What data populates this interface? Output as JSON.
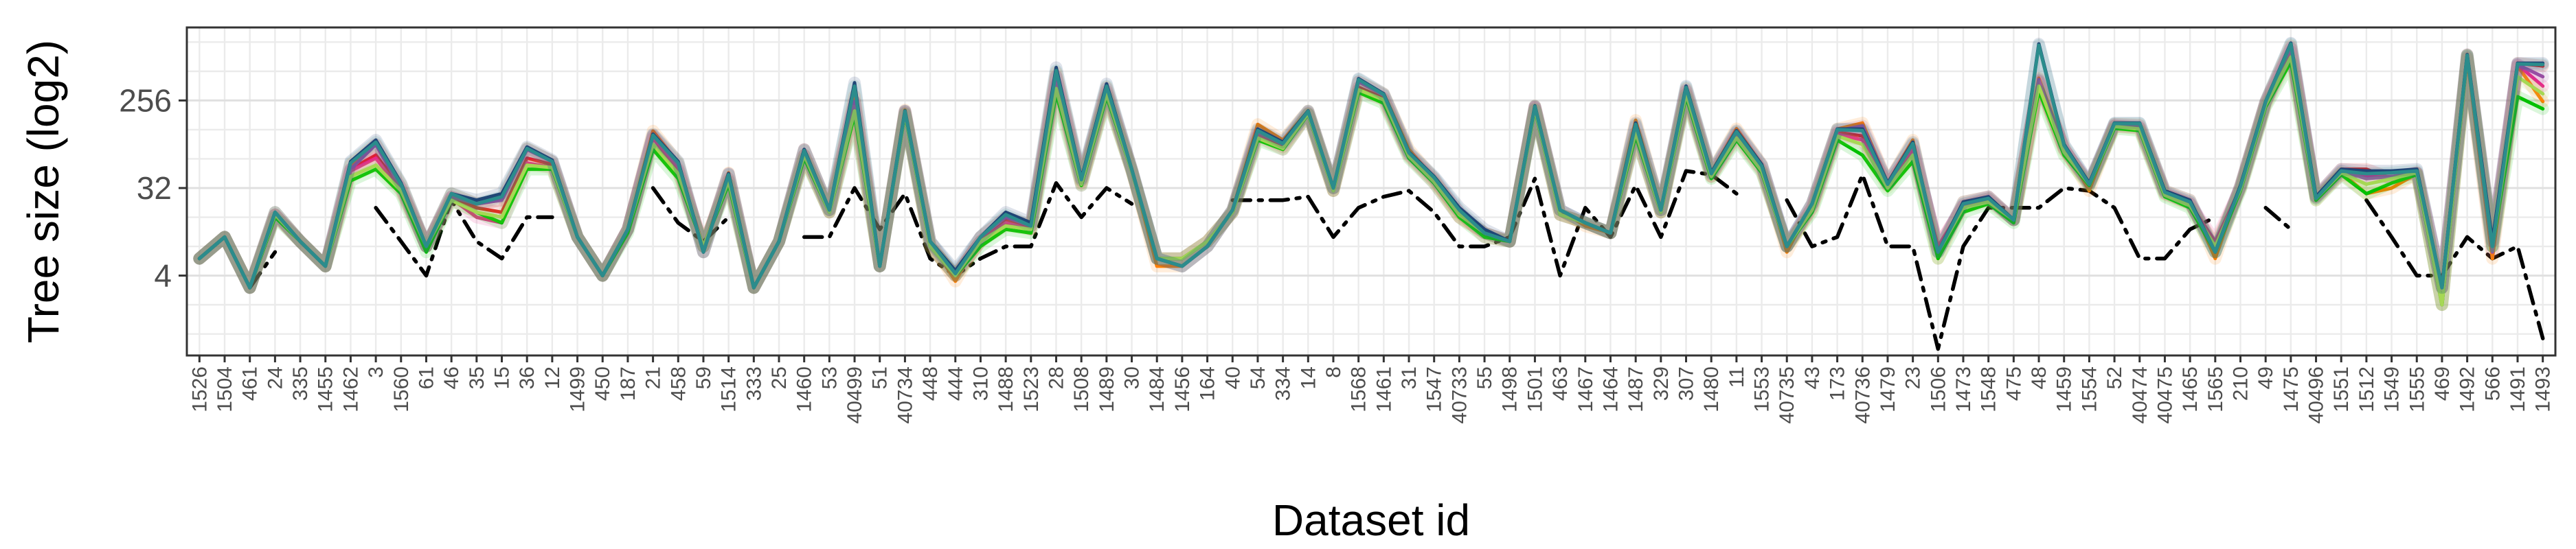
{
  "chart_data": {
    "type": "line",
    "xlabel": "Dataset id",
    "ylabel": "Tree size (log2)",
    "yscale": "log2",
    "ylim": [
      0.6,
      1450
    ],
    "yticks": [
      4,
      32,
      256
    ],
    "ytick_labels": [
      "4",
      "32",
      "256"
    ],
    "grid": true,
    "legend": "none",
    "categories": [
      "1526",
      "1504",
      "461",
      "24",
      "335",
      "1455",
      "1462",
      "3",
      "1560",
      "61",
      "46",
      "35",
      "15",
      "36",
      "12",
      "1499",
      "450",
      "187",
      "21",
      "458",
      "59",
      "1514",
      "333",
      "25",
      "1460",
      "53",
      "40499",
      "51",
      "40734",
      "448",
      "444",
      "310",
      "1488",
      "1523",
      "28",
      "1508",
      "1489",
      "30",
      "1484",
      "1456",
      "164",
      "40",
      "54",
      "334",
      "14",
      "8",
      "1568",
      "1461",
      "31",
      "1547",
      "40733",
      "55",
      "1498",
      "1501",
      "463",
      "1467",
      "1464",
      "1487",
      "329",
      "307",
      "1480",
      "11",
      "1553",
      "40735",
      "43",
      "173",
      "40736",
      "1479",
      "23",
      "1506",
      "1473",
      "1548",
      "475",
      "48",
      "1459",
      "1554",
      "52",
      "40474",
      "40475",
      "1465",
      "1565",
      "210",
      "49",
      "1475",
      "40496",
      "1551",
      "1512",
      "1549",
      "1555",
      "469",
      "1492",
      "566",
      "1491",
      "1493"
    ],
    "series": [
      {
        "color": "#000000",
        "dash": "dashdot",
        "values": [
          null,
          null,
          3,
          7,
          null,
          null,
          null,
          20,
          9,
          4,
          24,
          9,
          6,
          16,
          16,
          null,
          null,
          null,
          32,
          14,
          9,
          16,
          null,
          null,
          10,
          10,
          32,
          12,
          28,
          6,
          4,
          6,
          8,
          8,
          36,
          16,
          32,
          22,
          null,
          null,
          null,
          24,
          24,
          24,
          26,
          10,
          20,
          26,
          30,
          18,
          8,
          8,
          10,
          40,
          4,
          20,
          10,
          34,
          10,
          48,
          44,
          28,
          null,
          24,
          8,
          10,
          44,
          8,
          8,
          0.7,
          8,
          20,
          20,
          20,
          32,
          30,
          20,
          6,
          6,
          12,
          16,
          null,
          20,
          12,
          null,
          null,
          24,
          10,
          4,
          4,
          10,
          6,
          8,
          0.9
        ]
      },
      {
        "color": "#ff7f00",
        "values": [
          6,
          10,
          3,
          18,
          9,
          5,
          56,
          90,
          35,
          8,
          28,
          22,
          24,
          82,
          60,
          10,
          4,
          12,
          124,
          58,
          7,
          46,
          3,
          9,
          80,
          19,
          285,
          5,
          204,
          9,
          3.5,
          10,
          16,
          13,
          500,
          38,
          350,
          50,
          5,
          5,
          8,
          19,
          145,
          100,
          200,
          32,
          400,
          300,
          80,
          40,
          16,
          11,
          9,
          225,
          19,
          13,
          11,
          160,
          19,
          340,
          46,
          131,
          56,
          7,
          22,
          130,
          150,
          36,
          100,
          6,
          23,
          26,
          15,
          435,
          85,
          30,
          146,
          143,
          30,
          24,
          6,
          34,
          250,
          940,
          24,
          46,
          28,
          32,
          45,
          2,
          700,
          6,
          580,
          250
        ]
      },
      {
        "color": "#e41a1c",
        "values": [
          6,
          10,
          3,
          17,
          9,
          5,
          50,
          70,
          32,
          8,
          26,
          20,
          18,
          65,
          56,
          10,
          4,
          12,
          110,
          50,
          8,
          40,
          3,
          9,
          70,
          18,
          250,
          5,
          195,
          8,
          4,
          9,
          15,
          12,
          460,
          36,
          320,
          48,
          6,
          6,
          9,
          18,
          115,
          85,
          190,
          30,
          350,
          270,
          70,
          38,
          18,
          10,
          9,
          220,
          17,
          14,
          11,
          120,
          18,
          320,
          42,
          115,
          50,
          8,
          20,
          120,
          110,
          34,
          80,
          8,
          21,
          25,
          15,
          410,
          80,
          35,
          140,
          135,
          28,
          22,
          8,
          32,
          240,
          880,
          26,
          50,
          50,
          40,
          46,
          3,
          760,
          8,
          620,
          580
        ]
      },
      {
        "color": "#e7298a",
        "values": [
          6,
          10,
          3,
          17,
          9,
          5,
          48,
          65,
          30,
          8,
          25,
          16,
          14,
          58,
          52,
          10,
          4,
          12,
          105,
          48,
          8,
          38,
          3,
          9,
          70,
          18,
          200,
          5,
          190,
          8,
          4,
          9,
          14,
          12,
          380,
          34,
          300,
          48,
          6,
          6,
          9,
          18,
          110,
          80,
          185,
          30,
          330,
          260,
          68,
          36,
          16,
          11,
          9,
          215,
          17,
          14,
          11,
          115,
          18,
          300,
          42,
          110,
          48,
          8,
          20,
          115,
          100,
          34,
          78,
          8,
          21,
          24,
          15,
          400,
          80,
          36,
          140,
          132,
          28,
          22,
          9,
          32,
          230,
          820,
          26,
          44,
          42,
          42,
          46,
          3,
          740,
          9,
          600,
          360
        ]
      },
      {
        "color": "#984ea3",
        "values": [
          6,
          10,
          3,
          17,
          9,
          5,
          50,
          90,
          32,
          8,
          26,
          22,
          24,
          80,
          60,
          10,
          4,
          12,
          112,
          55,
          7,
          45,
          3,
          9,
          80,
          19,
          250,
          5,
          200,
          9,
          4,
          10,
          16,
          13,
          450,
          38,
          340,
          50,
          6,
          5,
          8,
          19,
          120,
          90,
          195,
          32,
          400,
          290,
          72,
          40,
          18,
          11,
          9,
          220,
          19,
          14,
          11,
          140,
          19,
          330,
          44,
          120,
          55,
          8,
          22,
          125,
          140,
          36,
          90,
          7,
          22,
          26,
          15,
          420,
          82,
          34,
          145,
          140,
          29,
          23,
          7,
          33,
          245,
          900,
          25,
          48,
          40,
          42,
          46,
          2,
          720,
          7,
          600,
          450
        ]
      },
      {
        "color": "#00c000",
        "values": [
          6,
          10,
          3,
          16,
          9,
          5,
          38,
          50,
          28,
          7,
          24,
          18,
          14,
          50,
          50,
          10,
          4,
          11,
          80,
          40,
          8,
          35,
          3,
          9,
          65,
          18,
          180,
          5,
          185,
          8,
          4,
          8,
          12,
          11,
          300,
          34,
          280,
          48,
          6,
          6,
          9,
          18,
          100,
          80,
          185,
          30,
          310,
          240,
          65,
          36,
          16,
          10,
          9,
          205,
          17,
          14,
          11,
          110,
          18,
          280,
          40,
          100,
          46,
          8,
          18,
          100,
          70,
          30,
          60,
          6,
          18,
          22,
          14,
          320,
          70,
          34,
          132,
          125,
          26,
          20,
          7,
          30,
          220,
          640,
          24,
          44,
          28,
          36,
          44,
          2,
          740,
          8,
          280,
          210
        ]
      },
      {
        "color": "#a6d854",
        "values": [
          6,
          10,
          3,
          17,
          9,
          5,
          42,
          55,
          30,
          8,
          24,
          18,
          16,
          55,
          52,
          10,
          4,
          12,
          90,
          45,
          8,
          38,
          3,
          9,
          70,
          18,
          200,
          5,
          190,
          8,
          4,
          9,
          13,
          12,
          340,
          35,
          300,
          48,
          6,
          6,
          9,
          18,
          105,
          82,
          188,
          30,
          330,
          260,
          68,
          37,
          17,
          11,
          9,
          210,
          17,
          14,
          11,
          120,
          18,
          300,
          42,
          105,
          48,
          8,
          19,
          110,
          90,
          32,
          70,
          7,
          20,
          23,
          15,
          360,
          75,
          35,
          138,
          130,
          27,
          21,
          8,
          31,
          230,
          720,
          25,
          46,
          35,
          40,
          46,
          2,
          750,
          8,
          450,
          300
        ]
      },
      {
        "color": "#1f3b73",
        "values": [
          6,
          10,
          3,
          18,
          9,
          5,
          60,
          100,
          36,
          8,
          28,
          24,
          28,
          85,
          62,
          10,
          4,
          12,
          115,
          60,
          7,
          45,
          3,
          9,
          80,
          19,
          390,
          5,
          200,
          9,
          4.5,
          10,
          18,
          14,
          560,
          40,
          380,
          50,
          6,
          5,
          8,
          19,
          130,
          95,
          200,
          32,
          430,
          300,
          75,
          42,
          20,
          12,
          9,
          225,
          19,
          14,
          11,
          150,
          19,
          360,
          46,
          125,
          56,
          8,
          22,
          130,
          130,
          36,
          95,
          7,
          23,
          26,
          15,
          980,
          90,
          36,
          150,
          150,
          30,
          24,
          7,
          34,
          250,
          1000,
          26,
          50,
          48,
          48,
          50,
          3,
          760,
          9,
          620,
          620
        ]
      },
      {
        "color": "#2b8c8c",
        "values": [
          6,
          10,
          3,
          18,
          9,
          5,
          58,
          95,
          35,
          8,
          28,
          22,
          26,
          82,
          60,
          10,
          4,
          12,
          112,
          58,
          7,
          44,
          3,
          9,
          78,
          19,
          360,
          5,
          198,
          9,
          4.2,
          10,
          17,
          13,
          520,
          39,
          360,
          50,
          6,
          5,
          8,
          19,
          125,
          92,
          198,
          32,
          420,
          295,
          74,
          41,
          19,
          11,
          9,
          222,
          19,
          14,
          11,
          145,
          19,
          350,
          45,
          122,
          54,
          8,
          22,
          128,
          125,
          35,
          92,
          7,
          22,
          25,
          15,
          950,
          88,
          35,
          148,
          148,
          29,
          23,
          7,
          33,
          248,
          980,
          25,
          48,
          45,
          46,
          48,
          3,
          750,
          8,
          610,
          600
        ]
      }
    ]
  }
}
